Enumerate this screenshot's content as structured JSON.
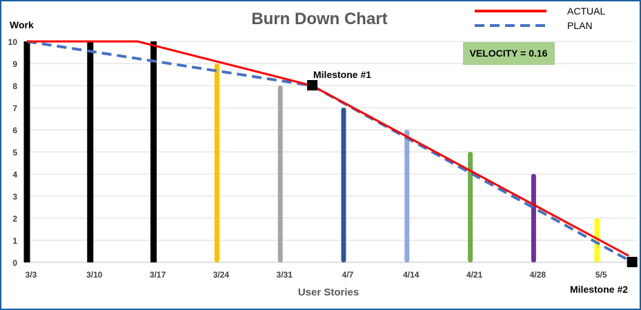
{
  "chart_data": {
    "type": "line",
    "title": "Burn Down Chart",
    "xlabel": "User Stories",
    "ylabel": "Work",
    "categories": [
      "3/3",
      "3/10",
      "3/17",
      "3/24",
      "3/31",
      "4/7",
      "4/14",
      "4/21",
      "4/28",
      "5/5"
    ],
    "ylim": [
      0,
      10
    ],
    "yticks": [
      0,
      1,
      2,
      3,
      4,
      5,
      6,
      7,
      8,
      9,
      10
    ],
    "grid": true,
    "legend_position": "top-right",
    "bars": {
      "values": [
        10,
        10,
        10,
        9,
        8,
        7,
        6,
        5,
        4,
        2
      ],
      "colors": [
        "#000000",
        "#000000",
        "#000000",
        "#FFC000",
        "#A6A6A6",
        "#2F5597",
        "#8FAADC",
        "#70AD47",
        "#7030A0",
        "#FFFF00"
      ]
    },
    "series": [
      {
        "name": "ACTUAL",
        "color": "#FF0000",
        "style": "solid",
        "points": [
          [
            0,
            10
          ],
          [
            1.75,
            10
          ],
          [
            4.5,
            8
          ],
          [
            9.5,
            0.3
          ]
        ]
      },
      {
        "name": "PLAN",
        "color": "#4472C4",
        "style": "dashed",
        "points": [
          [
            0,
            10
          ],
          [
            4.5,
            8
          ],
          [
            9.5,
            0.1
          ]
        ]
      }
    ],
    "markers": [
      {
        "label": "Milestone #1",
        "x": 4.5,
        "y": 8
      },
      {
        "label": "Milestone #2",
        "x": 9.55,
        "y": 0
      }
    ],
    "annotation": {
      "text": "VELOCITY = 0.16",
      "background": "#A9D18E"
    }
  }
}
